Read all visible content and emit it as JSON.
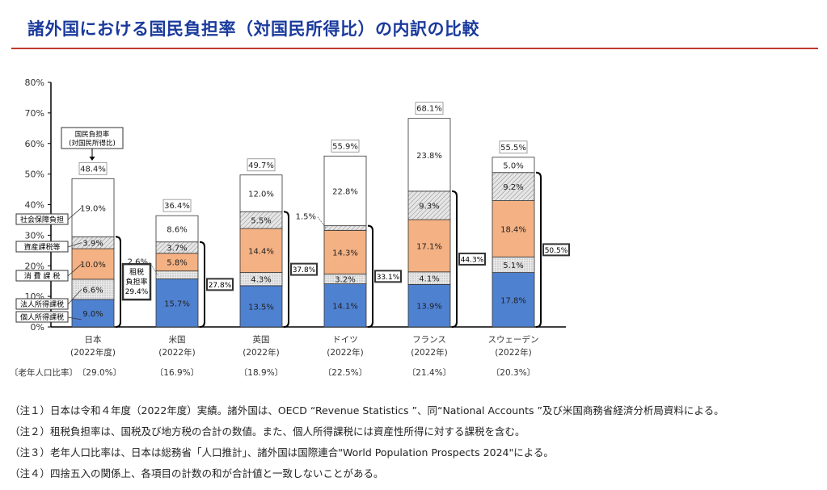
{
  "title": "諸外国における国民負担率（対国民所得比）の内訳の比較",
  "chart_data": {
    "type": "bar",
    "stacked": true,
    "ylim": [
      0,
      80
    ],
    "yticks": [
      "0%",
      "10%",
      "20%",
      "30%",
      "40%",
      "50%",
      "60%",
      "70%",
      "80%"
    ],
    "categories": [
      "日本",
      "米国",
      "英国",
      "ドイツ",
      "フランス",
      "スウェーデン"
    ],
    "category_years": [
      "(2022年度)",
      "(2022年)",
      "(2022年)",
      "(2022年)",
      "(2022年)",
      "(2022年)"
    ],
    "series": [
      {
        "name": "個人所得課税",
        "values": [
          9.0,
          15.7,
          13.5,
          14.1,
          13.9,
          17.8
        ],
        "labels": [
          "9.0%",
          "15.7%",
          "13.5%",
          "14.1%",
          "13.9%",
          "17.8%"
        ]
      },
      {
        "name": "法人所得課税",
        "values": [
          6.6,
          2.6,
          4.3,
          3.2,
          4.1,
          5.1
        ],
        "labels": [
          "6.6%",
          "2.6%",
          "4.3%",
          "3.2%",
          "4.1%",
          "5.1%"
        ]
      },
      {
        "name": "消 費 課 税",
        "values": [
          10.0,
          5.8,
          14.4,
          14.3,
          17.1,
          18.4
        ],
        "labels": [
          "10.0%",
          "5.8%",
          "14.4%",
          "14.3%",
          "17.1%",
          "18.4%"
        ]
      },
      {
        "name": "資産課税等",
        "values": [
          3.9,
          3.7,
          5.5,
          1.5,
          9.3,
          9.2
        ],
        "labels": [
          "3.9%",
          "3.7%",
          "5.5%",
          "1.5%",
          "9.3%",
          "9.2%"
        ]
      },
      {
        "name": "社会保障負担",
        "values": [
          19.0,
          8.6,
          12.0,
          22.8,
          23.8,
          5.0
        ],
        "labels": [
          "19.0%",
          "8.6%",
          "12.0%",
          "22.8%",
          "23.8%",
          "5.0%"
        ]
      }
    ],
    "totals": [
      "48.4%",
      "36.4%",
      "49.7%",
      "55.9%",
      "68.1%",
      "55.5%"
    ],
    "total_label": [
      "国民負担率",
      "(対国民所得比)"
    ],
    "tax_burden": [
      "29.4%",
      "27.8%",
      "37.8%",
      "33.1%",
      "44.3%",
      "50.5%"
    ],
    "tax_burden_label": [
      "租税",
      "負担率"
    ],
    "elderly_label": "〔老年人口比率〕",
    "elderly_ratio": [
      "〔29.0%〕",
      "〔16.9%〕",
      "〔18.9%〕",
      "〔22.5%〕",
      "〔21.4%〕",
      "〔20.3%〕"
    ],
    "colors": {
      "income": "#4f81d1",
      "corporate": "#d9d9d9",
      "consumption": "#f4b183",
      "asset": "#d9d9d9",
      "social": "#ffffff"
    }
  },
  "notes": [
    "（注１）日本は令和４年度（2022年度）実績。諸外国は、OECD “Revenue Statistics ”、同“National Accounts ”及び米国商務省経済分析局資料による。",
    "（注２）租税負担率は、国税及び地方税の合計の数値。また、個人所得課税には資産性所得に対する課税を含む。",
    "（注３）老年人口比率は、日本は総務省「人口推計」、諸外国は国際連合\"World Population Prospects 2024\"による。",
    "（注４）四捨五入の関係上、各項目の計数の和が合計値と一致しないことがある。"
  ]
}
